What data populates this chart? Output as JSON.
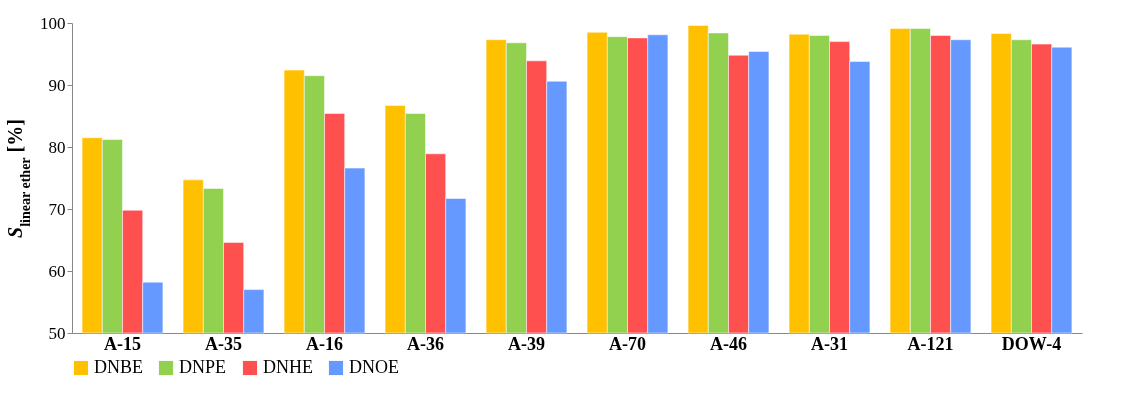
{
  "chart_data": {
    "type": "bar",
    "ylabel": "S$_{linear ether}$ [%]",
    "categories": [
      "A-15",
      "A-35",
      "A-16",
      "A-36",
      "A-39",
      "A-70",
      "A-46",
      "A-31",
      "A-121",
      "DOW-4"
    ],
    "series": [
      {
        "name": "DNBE",
        "color": "#ffc000",
        "values": [
          81.5,
          74.7,
          92.4,
          86.7,
          97.3,
          98.5,
          99.6,
          98.2,
          99.1,
          98.3
        ]
      },
      {
        "name": "DNPE",
        "color": "#92d050",
        "values": [
          81.2,
          73.3,
          91.5,
          85.4,
          96.8,
          97.8,
          98.4,
          98.0,
          99.1,
          97.3
        ]
      },
      {
        "name": "DNHE",
        "color": "#ff5050",
        "values": [
          69.8,
          64.6,
          85.4,
          78.9,
          93.9,
          97.6,
          94.8,
          97.0,
          98.0,
          96.6
        ]
      },
      {
        "name": "DNOE",
        "color": "#6699ff",
        "values": [
          58.2,
          57.0,
          76.6,
          71.7,
          90.6,
          98.1,
          95.4,
          93.8,
          97.3,
          96.1
        ]
      }
    ],
    "ylim": [
      50,
      100
    ],
    "yticks": [
      50,
      60,
      70,
      80,
      90,
      100
    ],
    "grid": false,
    "legend": "bottom"
  }
}
